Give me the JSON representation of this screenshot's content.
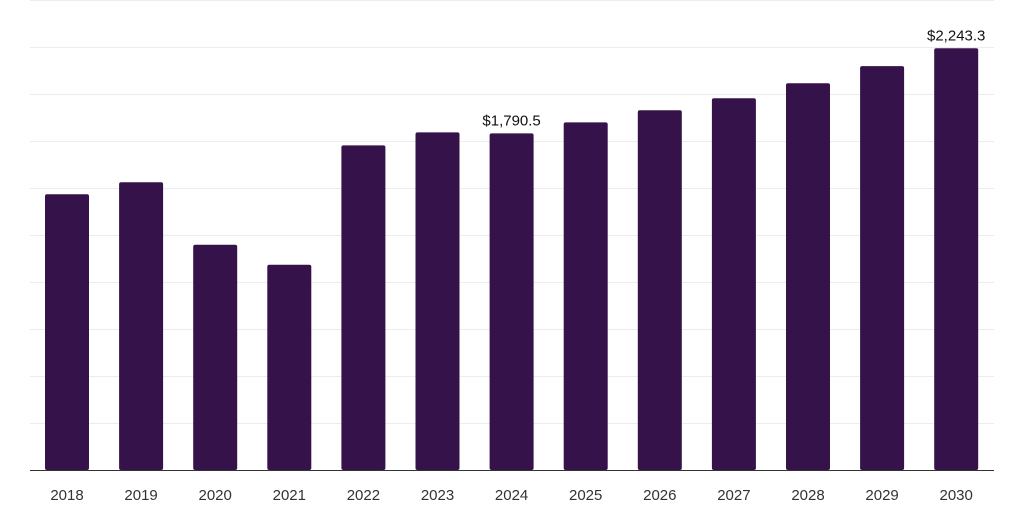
{
  "chart_data": {
    "type": "bar",
    "title": "",
    "xlabel": "",
    "ylabel": "",
    "categories": [
      "2018",
      "2019",
      "2020",
      "2021",
      "2022",
      "2023",
      "2024",
      "2025",
      "2026",
      "2027",
      "2028",
      "2029",
      "2030"
    ],
    "values": [
      1466.9,
      1531.0,
      1198.4,
      1091.5,
      1726.4,
      1795.9,
      1790.5,
      1849.2,
      1913.2,
      1977.3,
      2057.4,
      2148.2,
      2243.3
    ],
    "data_labels": [
      {
        "category": "2024",
        "text": "$1,790.5"
      },
      {
        "category": "2030",
        "text": "$2,243.3"
      }
    ],
    "ylim": [
      0,
      2500
    ],
    "grid": true,
    "grid_lines": 10,
    "colors": {
      "bar": "#36124a",
      "grid": "#ececec",
      "axis": "#333333",
      "text": "#333333"
    }
  }
}
